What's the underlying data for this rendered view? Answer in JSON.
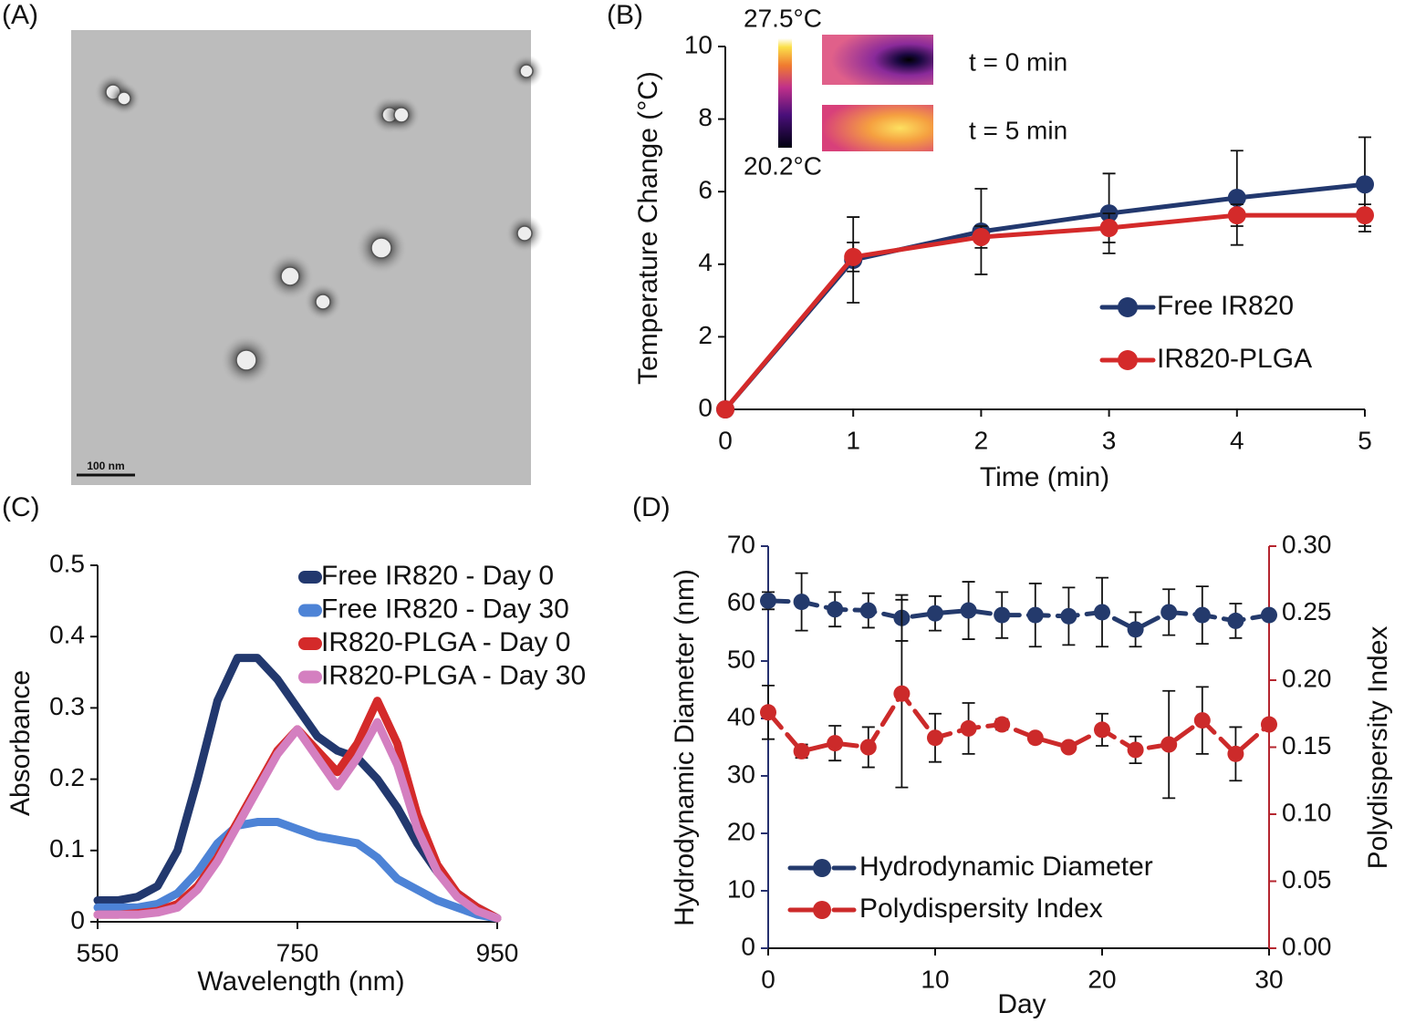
{
  "chart_data": [
    {
      "type": "image",
      "panel_label": "(A)",
      "scale_bar_label": "100 nm"
    },
    {
      "type": "line",
      "panel_label": "(B)",
      "x_label": "Time (min)",
      "y_label": "Temperature Change (°C)",
      "x": [
        0,
        1,
        2,
        3,
        4,
        5
      ],
      "xlim": [
        0,
        5
      ],
      "xticks": [
        0,
        1,
        2,
        3,
        4,
        5
      ],
      "ylim": [
        0,
        10
      ],
      "yticks": [
        0,
        2,
        4,
        6,
        8,
        10
      ],
      "markers": true,
      "legend": "center right",
      "series": [
        {
          "name": "Free IR820",
          "color": "#22386e",
          "values": [
            0,
            4.12,
            4.9,
            5.4,
            5.83,
            6.2
          ],
          "errors": [
            0,
            1.18,
            1.18,
            1.1,
            1.3,
            1.3
          ]
        },
        {
          "name": "IR820-PLGA",
          "color": "#d42a2a",
          "values": [
            0,
            4.2,
            4.75,
            5.0,
            5.35,
            5.35
          ],
          "errors": [
            0,
            0.4,
            0.3,
            0.4,
            0.3,
            0.3
          ]
        }
      ],
      "inset": {
        "max_label": "27.5°C",
        "min_label": "20.2°C",
        "labels": [
          "t = 0 min",
          "t = 5 min"
        ]
      }
    },
    {
      "type": "line",
      "panel_label": "(C)",
      "x_label": "Wavelength (nm)",
      "y_label": "Absorbance",
      "x": [
        550,
        570,
        590,
        610,
        630,
        650,
        670,
        690,
        710,
        730,
        750,
        770,
        790,
        810,
        830,
        850,
        870,
        890,
        910,
        930,
        950
      ],
      "xlim": [
        550,
        950
      ],
      "xticks": [
        550,
        750,
        950
      ],
      "ylim": [
        0,
        0.5
      ],
      "yticks": [
        0,
        0.1,
        0.2,
        0.3,
        0.4,
        0.5
      ],
      "markers": false,
      "legend": "upper right",
      "series": [
        {
          "name": "Free IR820 - Day 0",
          "color": "#22386e",
          "values": [
            0.03,
            0.03,
            0.035,
            0.05,
            0.1,
            0.2,
            0.31,
            0.37,
            0.37,
            0.34,
            0.3,
            0.26,
            0.24,
            0.23,
            0.2,
            0.16,
            0.11,
            0.07,
            0.04,
            0.02,
            0.005
          ]
        },
        {
          "name": "Free IR820 - Day 30",
          "color": "#4d83d6",
          "values": [
            0.02,
            0.02,
            0.02,
            0.025,
            0.04,
            0.07,
            0.11,
            0.135,
            0.14,
            0.14,
            0.13,
            0.12,
            0.115,
            0.11,
            0.09,
            0.06,
            0.045,
            0.03,
            0.02,
            0.01,
            0.005
          ]
        },
        {
          "name": "IR820-PLGA - Day 0",
          "color": "#d42a2a",
          "values": [
            0.01,
            0.01,
            0.012,
            0.015,
            0.025,
            0.05,
            0.09,
            0.14,
            0.19,
            0.24,
            0.27,
            0.24,
            0.21,
            0.25,
            0.31,
            0.25,
            0.15,
            0.08,
            0.04,
            0.02,
            0.005
          ]
        },
        {
          "name": "IR820-PLGA - Day 30",
          "color": "#d47fc0",
          "values": [
            0.01,
            0.01,
            0.01,
            0.013,
            0.02,
            0.045,
            0.085,
            0.135,
            0.185,
            0.235,
            0.27,
            0.23,
            0.19,
            0.23,
            0.28,
            0.22,
            0.13,
            0.07,
            0.035,
            0.015,
            0.005
          ]
        }
      ]
    },
    {
      "type": "line",
      "panel_label": "(D)",
      "x_label": "Day",
      "y_label": "Hydrodynamic Diameter (nm)",
      "y2_label": "Polydispersity Index",
      "y_color": "#26306e",
      "y2_color": "#b5252e",
      "x": [
        0,
        2,
        4,
        6,
        8,
        10,
        12,
        14,
        16,
        18,
        20,
        22,
        24,
        26,
        28,
        30
      ],
      "xlim": [
        0,
        30
      ],
      "xticks": [
        0,
        10,
        20,
        30
      ],
      "ylim": [
        0,
        70
      ],
      "yticks": [
        0,
        10,
        20,
        30,
        40,
        50,
        60,
        70
      ],
      "y2lim": [
        0,
        0.3
      ],
      "y2ticks": [
        {
          "value": 0,
          "label": "0.00"
        },
        {
          "value": 0.05,
          "label": "0.05"
        },
        {
          "value": 0.1,
          "label": "0.10"
        },
        {
          "value": 0.15,
          "label": "0.15"
        },
        {
          "value": 0.2,
          "label": "0.20"
        },
        {
          "value": 0.25,
          "label": "0.25"
        },
        {
          "value": 0.3,
          "label": "0.30"
        }
      ],
      "markers": true,
      "legend": "lower left",
      "series": [
        {
          "name": "Hydrodynamic Diameter",
          "color": "#243a6c",
          "style": "dashed",
          "values": [
            60.5,
            60.3,
            59,
            58.8,
            57.5,
            58.3,
            58.8,
            58,
            58,
            57.8,
            58.5,
            55.5,
            58.5,
            58,
            57,
            58
          ],
          "errors": [
            1.5,
            5,
            3,
            3,
            4,
            3,
            5,
            4,
            5.5,
            5,
            6,
            3,
            4,
            5,
            3,
            0
          ]
        },
        {
          "name": "Polydispersity Index",
          "color": "#cc2a2a",
          "style": "dashed",
          "axis": "y2",
          "values": [
            0.176,
            0.147,
            0.153,
            0.15,
            0.19,
            0.157,
            0.164,
            0.167,
            0.157,
            0.15,
            0.163,
            0.148,
            0.152,
            0.17,
            0.145,
            0.167
          ],
          "errors": [
            0.02,
            0.005,
            0.013,
            0.015,
            0.07,
            0.018,
            0.019,
            0.004,
            0,
            0,
            0.012,
            0.01,
            0.04,
            0.025,
            0.02,
            0
          ]
        }
      ]
    }
  ]
}
